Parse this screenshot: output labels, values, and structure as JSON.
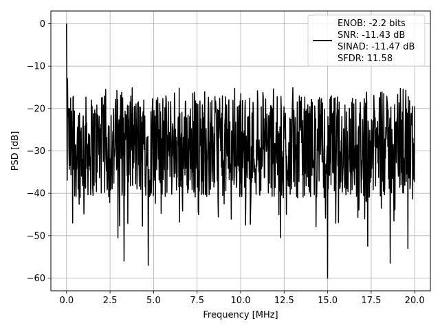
{
  "chart_data": {
    "type": "line",
    "xlabel": "Frequency [MHz]",
    "ylabel": "PSD [dB]",
    "xlim": [
      -0.9,
      20.9
    ],
    "ylim": [
      -63,
      3
    ],
    "x_ticks": [
      0.0,
      2.5,
      5.0,
      7.5,
      10.0,
      12.5,
      15.0,
      17.5,
      20.0
    ],
    "x_tick_labels": [
      "0.0",
      "2.5",
      "5.0",
      "7.5",
      "10.0",
      "12.5",
      "15.0",
      "17.5",
      "20.0"
    ],
    "y_ticks": [
      0,
      -10,
      -20,
      -30,
      -40,
      -50,
      -60
    ],
    "y_tick_labels": [
      "0",
      "−10",
      "−20",
      "−30",
      "−40",
      "−50",
      "−60"
    ],
    "grid": true,
    "legend_position": "top-right",
    "series": [
      {
        "name": "ENOB: -2.2 bits\nSNR: -11.43 dB\nSINAD: -11.47 dB\nSFDR: 11.58",
        "color": "#000000",
        "x_range": [
          0,
          20
        ],
        "n_points": 1024,
        "peak": {
          "x": 0.0,
          "y": 0.0
        },
        "noise_floor_mean": -29,
        "noise_band": [
          -40,
          -18
        ],
        "notable_points": [
          {
            "x": 0.05,
            "y": -13
          },
          {
            "x": 0.1,
            "y": -20
          },
          {
            "x": 0.35,
            "y": -47
          },
          {
            "x": 2.95,
            "y": -50.5
          },
          {
            "x": 3.3,
            "y": -56
          },
          {
            "x": 4.7,
            "y": -57
          },
          {
            "x": 10.0,
            "y": -16.5
          },
          {
            "x": 12.3,
            "y": -50.5
          },
          {
            "x": 15.0,
            "y": -60
          },
          {
            "x": 17.3,
            "y": -52.5
          },
          {
            "x": 18.6,
            "y": -56.5
          },
          {
            "x": 19.6,
            "y": -53
          }
        ]
      }
    ],
    "legend": [
      "ENOB: -2.2 bits",
      "SNR: -11.43 dB",
      "SINAD: -11.47 dB",
      "SFDR: 11.58"
    ]
  }
}
